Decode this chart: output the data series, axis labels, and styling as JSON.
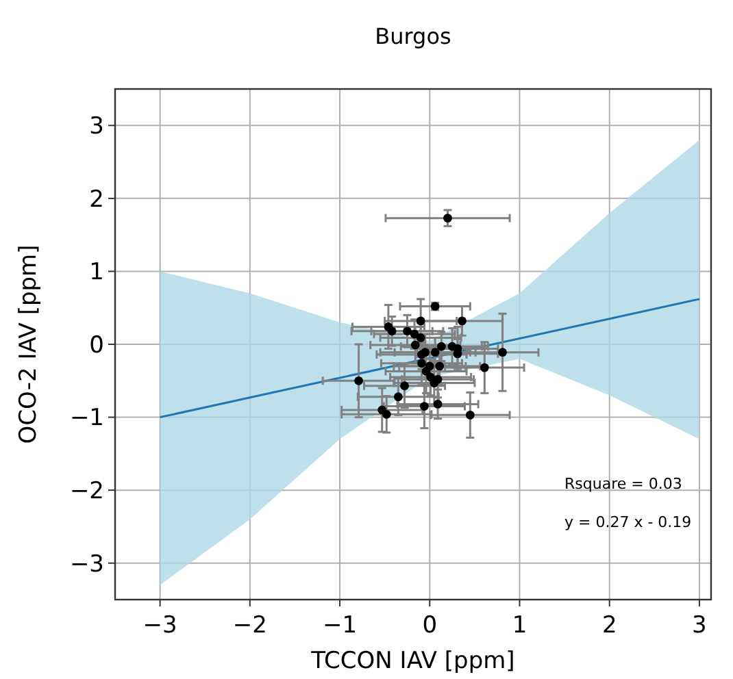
{
  "chart_data": {
    "type": "scatter",
    "title": "Burgos",
    "xlabel": "TCCON IAV [ppm]",
    "ylabel": "OCO-2 IAV [ppm]",
    "xlim": [
      -3.5,
      3.13
    ],
    "ylim": [
      -3.5,
      3.5
    ],
    "xticks": [
      -3,
      -2,
      -1,
      0,
      1,
      2,
      3
    ],
    "yticks": [
      -3,
      -2,
      -1,
      0,
      1,
      2,
      3
    ],
    "grid": true,
    "marker": "circle",
    "annotations": [
      "Rsquare = 0.03",
      "y = 0.27 x - 0.19"
    ],
    "series": [
      {
        "type": "line",
        "marker": "none",
        "color": "#1f77b4",
        "x": [
          -3,
          -2,
          -1,
          0,
          1,
          2,
          3
        ],
        "values": [
          -1.0,
          -0.73,
          -0.46,
          -0.19,
          0.08,
          0.35,
          0.62
        ],
        "lower": [
          -3.3,
          -2.4,
          -1.3,
          -0.45,
          -0.2,
          -0.7,
          -1.3
        ],
        "upper": [
          1.0,
          0.7,
          0.3,
          0.05,
          0.7,
          1.8,
          2.8
        ]
      },
      {
        "color": "#000000",
        "x": [
          0.2,
          0.06,
          -0.1,
          0.36,
          -0.46,
          -0.42,
          -0.25,
          -0.17,
          -0.1,
          -0.16,
          0.25,
          0.13,
          0.31,
          0.31,
          0.06,
          -0.05,
          -0.09,
          0.81,
          -0.09,
          0.0,
          0.11,
          0.61,
          -0.04,
          0.01,
          0.09,
          0.05,
          -0.79,
          -0.28,
          -0.35,
          0.09,
          -0.06,
          -0.53,
          -0.48,
          0.45
        ],
        "values": [
          1.73,
          0.52,
          0.32,
          0.32,
          0.24,
          0.18,
          0.18,
          0.14,
          0.09,
          -0.01,
          -0.03,
          -0.03,
          -0.06,
          -0.13,
          -0.11,
          -0.11,
          -0.14,
          -0.11,
          -0.26,
          -0.3,
          -0.3,
          -0.32,
          -0.37,
          -0.45,
          -0.48,
          -0.53,
          -0.5,
          -0.57,
          -0.72,
          -0.82,
          -0.85,
          -0.9,
          -0.96,
          -0.97
        ],
        "errors": [
          0.11,
          0.05,
          0.3,
          0.2,
          0.3,
          0.2,
          0.22,
          0.2,
          0.2,
          0.25,
          0.25,
          0.2,
          0.3,
          0.2,
          0.2,
          0.25,
          0.2,
          0.53,
          0.3,
          0.25,
          0.25,
          0.35,
          0.3,
          0.25,
          0.25,
          0.3,
          0.5,
          0.3,
          0.25,
          0.2,
          0.3,
          0.3,
          0.25,
          0.31
        ],
        "xerrors": [
          0.69,
          0.39,
          0.4,
          0.45,
          0.4,
          0.45,
          0.4,
          0.45,
          0.45,
          0.5,
          0.4,
          0.45,
          0.45,
          0.45,
          0.45,
          0.5,
          0.5,
          0.4,
          0.45,
          0.4,
          0.45,
          0.44,
          0.45,
          0.45,
          0.4,
          0.45,
          0.4,
          0.45,
          0.45,
          0.45,
          0.45,
          0.45,
          0.5,
          0.44
        ]
      }
    ]
  }
}
